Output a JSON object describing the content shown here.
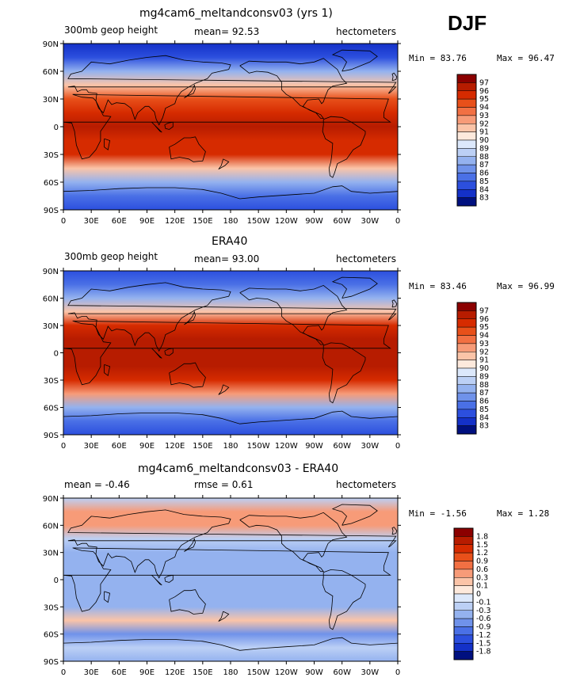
{
  "season": "DJF",
  "panels": [
    {
      "title": "mg4cam6_meltandconsv03 (yrs 1)",
      "left_label": "300mb geop height",
      "center_label": "mean=   92.53",
      "right_label": "hectometers",
      "min_label": "Min =  83.76",
      "max_label": "Max =  96.47",
      "colorbar_labels": [
        "97",
        "96",
        "95",
        "94",
        "93",
        "92",
        "91",
        "90",
        "89",
        "88",
        "87",
        "86",
        "85",
        "84",
        "83"
      ]
    },
    {
      "title": "ERA40",
      "left_label": "300mb geop height",
      "center_label": "mean=   93.00",
      "right_label": "hectometers",
      "min_label": "Min =  83.46",
      "max_label": "Max =  96.99",
      "colorbar_labels": [
        "97",
        "96",
        "95",
        "94",
        "93",
        "92",
        "91",
        "90",
        "89",
        "88",
        "87",
        "86",
        "85",
        "84",
        "83"
      ]
    },
    {
      "title": "mg4cam6_meltandconsv03 - ERA40",
      "left_label": "mean =   -0.46",
      "center_label": "rmse =    0.61",
      "right_label": "hectometers",
      "min_label": "Min = -1.56",
      "max_label": "Max =   1.28",
      "colorbar_labels": [
        "1.8",
        "1.5",
        "1.2",
        "0.9",
        "0.6",
        "0.3",
        "0.1",
        "0",
        "-0.1",
        "-0.3",
        "-0.6",
        "-0.9",
        "-1.2",
        "-1.5",
        "-1.8"
      ]
    }
  ],
  "chart_data": {
    "type": "heatmap",
    "x_ticks": [
      "0",
      "30E",
      "60E",
      "90E",
      "120E",
      "150E",
      "180",
      "150W",
      "120W",
      "90W",
      "60W",
      "30W",
      "0"
    ],
    "y_ticks": [
      "90N",
      "60N",
      "30N",
      "0",
      "30S",
      "60S",
      "90S"
    ],
    "fields": [
      {
        "name": "mg4cam6_meltandconsv03 (yrs 1)",
        "latitudes": [
          90,
          75,
          60,
          45,
          30,
          15,
          0,
          -15,
          -30,
          -45,
          -60,
          -75,
          -90
        ],
        "zonal_mean": [
          83.9,
          84.8,
          87.0,
          91.0,
          94.6,
          95.9,
          96.0,
          95.9,
          95.0,
          91.5,
          87.0,
          85.0,
          84.5
        ],
        "min": 83.76,
        "max": 96.47,
        "mean": 92.53,
        "units": "hectometers"
      },
      {
        "name": "ERA40",
        "latitudes": [
          90,
          75,
          60,
          45,
          30,
          15,
          0,
          -15,
          -30,
          -45,
          -60,
          -75,
          -90
        ],
        "zonal_mean": [
          84.0,
          85.0,
          87.2,
          91.2,
          95.0,
          96.5,
          96.8,
          96.6,
          95.4,
          92.0,
          87.5,
          85.2,
          84.8
        ],
        "min": 83.46,
        "max": 96.99,
        "mean": 93.0,
        "units": "hectometers"
      },
      {
        "name": "mg4cam6_meltandconsv03 - ERA40",
        "latitudes": [
          90,
          75,
          60,
          45,
          30,
          15,
          0,
          -15,
          -30,
          -45,
          -60,
          -75,
          -90
        ],
        "zonal_mean": [
          -0.2,
          0.3,
          0.4,
          -0.3,
          -0.5,
          -0.6,
          -0.6,
          -0.6,
          -0.5,
          0.1,
          -0.8,
          -0.3,
          -0.4
        ],
        "min": -1.56,
        "max": 1.28,
        "mean": -0.46,
        "rmse": 0.61,
        "units": "hectometers"
      }
    ],
    "colorbar_levels_height": [
      97,
      96,
      95,
      94,
      93,
      92,
      91,
      90,
      89,
      88,
      87,
      86,
      85,
      84,
      83
    ],
    "colorbar_levels_diff": [
      1.8,
      1.5,
      1.2,
      0.9,
      0.6,
      0.3,
      0.1,
      0,
      -0.1,
      -0.3,
      -0.6,
      -0.9,
      -1.2,
      -1.5,
      -1.8
    ],
    "colors": {
      "height_bins": [
        "#8b0000",
        "#b71c00",
        "#d62b00",
        "#e8501a",
        "#f27043",
        "#f79b78",
        "#fbc4a8",
        "#fde9dc",
        "#dce8fb",
        "#bcd0f5",
        "#94b2ef",
        "#6f92ea",
        "#4a70e6",
        "#2c4fde",
        "#1431c8",
        "#00107f"
      ],
      "diff_bins": [
        "#8b0000",
        "#b71c00",
        "#d62b00",
        "#e8501a",
        "#f27043",
        "#f79b78",
        "#fbc4a8",
        "#fde9dc",
        "#dce8fb",
        "#bcd0f5",
        "#94b2ef",
        "#6f92ea",
        "#4a70e6",
        "#2c4fde",
        "#1431c8",
        "#00107f"
      ]
    }
  }
}
